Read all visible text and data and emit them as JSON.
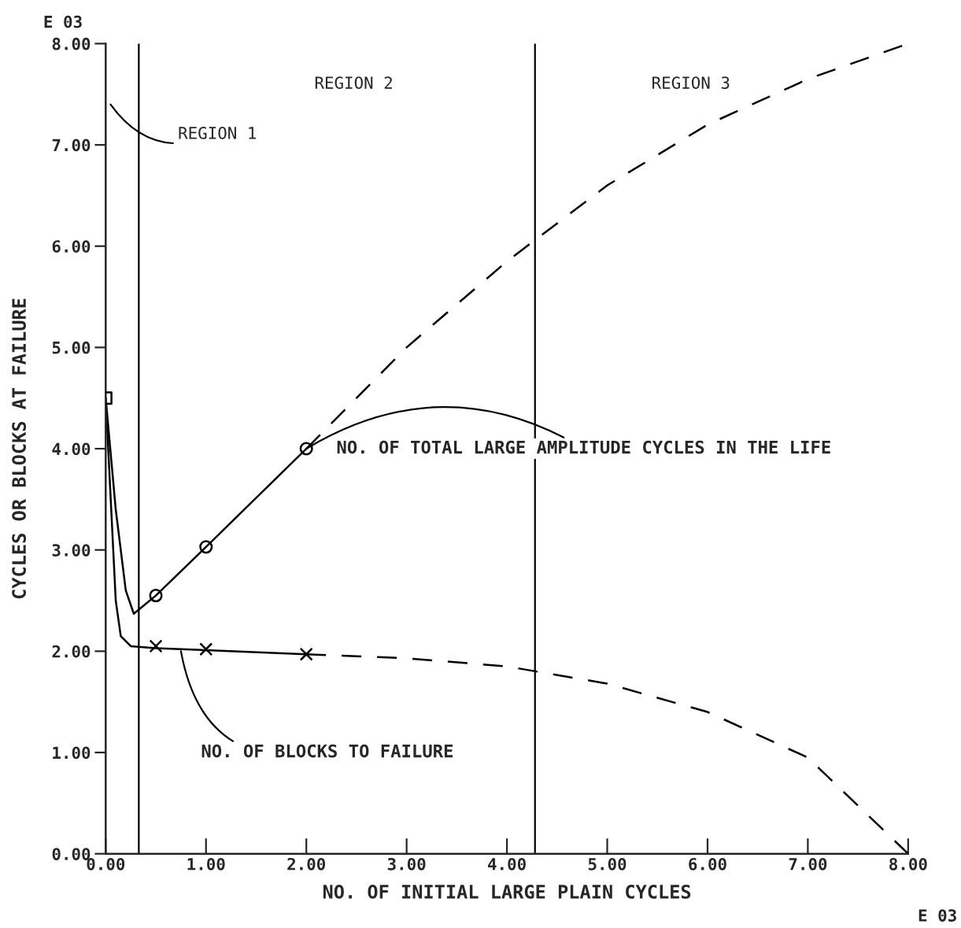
{
  "chart_data": {
    "type": "line",
    "xlabel": "NO. OF INITIAL LARGE PLAIN CYCLES",
    "ylabel": "CYCLES OR BLOCKS AT FAILURE",
    "xlim": [
      0,
      8
    ],
    "ylim": [
      0,
      8
    ],
    "xticks": [
      {
        "value": 0,
        "label": "0.00"
      },
      {
        "value": 1,
        "label": "1.00"
      },
      {
        "value": 2,
        "label": "2.00"
      },
      {
        "value": 3,
        "label": "3.00"
      },
      {
        "value": 4,
        "label": "4.00"
      },
      {
        "value": 5,
        "label": "5.00"
      },
      {
        "value": 6,
        "label": "6.00"
      },
      {
        "value": 7,
        "label": "7.00"
      },
      {
        "value": 8,
        "label": "8.00"
      }
    ],
    "yticks": [
      {
        "value": 0,
        "label": "0.00"
      },
      {
        "value": 1,
        "label": "1.00"
      },
      {
        "value": 2,
        "label": "2.00"
      },
      {
        "value": 3,
        "label": "3.00"
      },
      {
        "value": 4,
        "label": "4.00"
      },
      {
        "value": 5,
        "label": "5.00"
      },
      {
        "value": 6,
        "label": "6.00"
      },
      {
        "value": 7,
        "label": "7.00"
      },
      {
        "value": 8,
        "label": "8.00"
      }
    ],
    "grid": false,
    "legend": false,
    "series": [
      {
        "color": "#000000",
        "line_style": "solid",
        "marker": "none",
        "x": [
          0,
          0.1,
          0.2,
          0.28,
          0.5,
          1,
          2
        ],
        "values": [
          4.5,
          3.4,
          2.6,
          2.37,
          2.55,
          3.03,
          4.0
        ]
      },
      {
        "color": "#000000",
        "line_style": "dashed",
        "marker": "none",
        "x": [
          2,
          3,
          4,
          5,
          6,
          7,
          8
        ],
        "values": [
          4.0,
          5.0,
          5.85,
          6.6,
          7.2,
          7.65,
          8.0
        ]
      },
      {
        "color": "#000000",
        "line_style": "solid",
        "marker": "none",
        "x": [
          0,
          0.05,
          0.1,
          0.15,
          0.25,
          0.5,
          1,
          2
        ],
        "values": [
          4.5,
          3.5,
          2.5,
          2.15,
          2.05,
          2.03,
          2.01,
          1.97
        ]
      },
      {
        "color": "#000000",
        "line_style": "dashed",
        "marker": "none",
        "x": [
          2,
          3,
          4,
          5,
          6,
          7,
          8
        ],
        "values": [
          1.97,
          1.93,
          1.85,
          1.68,
          1.4,
          0.95,
          0
        ]
      },
      {
        "type": "scatter",
        "color": "#000000",
        "marker": "circle",
        "x": [
          0.5,
          1,
          2
        ],
        "values": [
          2.55,
          3.03,
          4.0
        ]
      },
      {
        "type": "scatter",
        "color": "#000000",
        "marker": "cross",
        "x": [
          0.5,
          1,
          2
        ],
        "values": [
          2.05,
          2.02,
          1.97
        ]
      },
      {
        "type": "scatter",
        "color": "#000000",
        "marker": "square",
        "x": [
          0
        ],
        "values": [
          4.5
        ]
      }
    ],
    "ref_lines": [
      {
        "axis": "x",
        "value": 0.33,
        "color": "#000000"
      },
      {
        "axis": "x",
        "value": 4.28,
        "color": "#000000"
      }
    ],
    "annotations": [
      "E 03",
      "E 03",
      "REGION 1",
      "REGION 2",
      "REGION 3",
      {
        "text": "NO. OF TOTAL LARGE AMPLITUDE CYCLES IN THE LIFE",
        "x": 2.0,
        "y": 4.0
      },
      {
        "text": "NO. OF BLOCKS TO FAILURE",
        "x": 0.75,
        "y": 2.0
      }
    ]
  }
}
